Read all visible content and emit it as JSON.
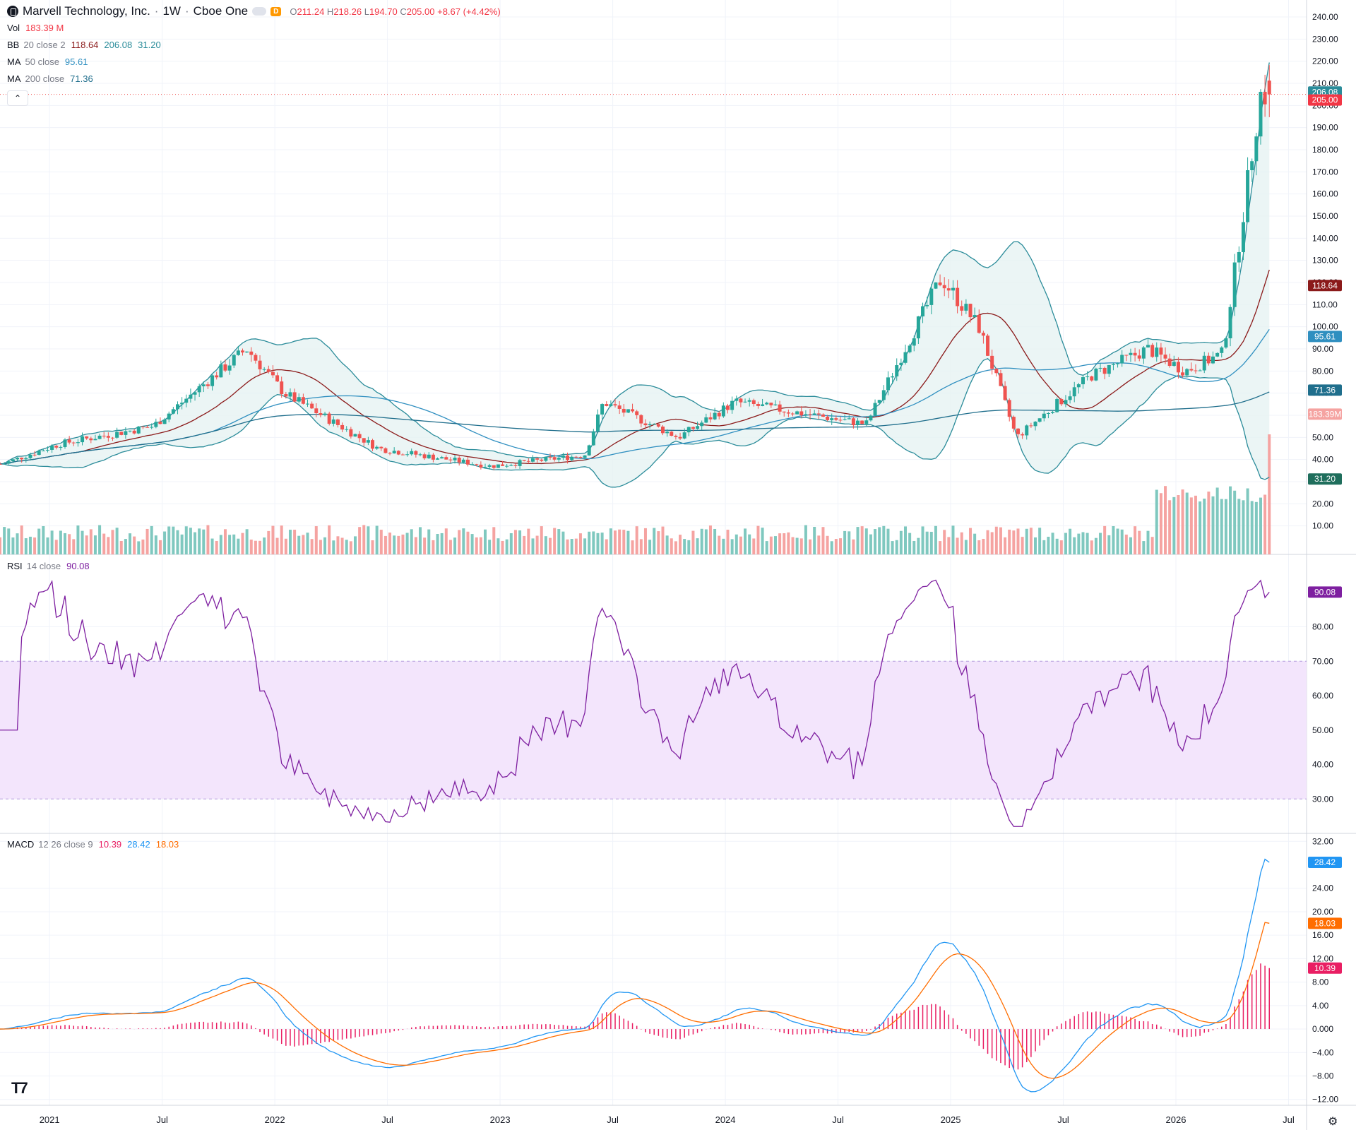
{
  "header": {
    "symbol": "Marvell Technology, Inc.",
    "interval": "1W",
    "exchange": "Cboe One",
    "title_sep": "·",
    "delayed_badge": "D",
    "ohlc": {
      "o_label": "O",
      "o": "211.24",
      "h_label": "H",
      "h": "218.26",
      "l_label": "L",
      "l": "194.70",
      "c_label": "C",
      "c": "205.00",
      "change": "+8.67 (+4.42%)"
    }
  },
  "indicators": {
    "vol": {
      "name": "Vol",
      "value": "183.39 M"
    },
    "bb": {
      "name": "BB",
      "params": "20 close 2",
      "basis": "118.64",
      "upper": "206.08",
      "lower": "31.20"
    },
    "ma50": {
      "name": "MA",
      "params": "50 close",
      "value": "95.61"
    },
    "ma200": {
      "name": "MA",
      "params": "200 close",
      "value": "71.36"
    },
    "rsi": {
      "name": "RSI",
      "params": "14 close",
      "value": "90.08"
    },
    "macd": {
      "name": "MACD",
      "params": "12 26 close 9",
      "hist": "10.39",
      "macd": "28.42",
      "signal": "18.03"
    }
  },
  "colors": {
    "up": "#26a69a",
    "down": "#ef5350",
    "vol_up": "#7fc8bf",
    "vol_down": "#f5a3a1",
    "bb_line": "#2b8c9a",
    "bb_fill": "#e6f2f2",
    "bb_basis": "#8b1a1a",
    "ma50": "#2f8fc0",
    "ma200": "#1f6e8c",
    "rsi": "#7e1fa0",
    "rsi_band": "#f3e5fc",
    "macd": "#2196f3",
    "signal": "#ff6d00",
    "hist": "#e91e63",
    "grid": "#f0f3fa",
    "text": "#131722"
  },
  "axis_labels": {
    "price": [
      "240.00",
      "230.00",
      "220.00",
      "210.00",
      "200.00",
      "190.00",
      "180.00",
      "170.00",
      "160.00",
      "150.00",
      "140.00",
      "130.00",
      "120.00",
      "110.00",
      "100.00",
      "90.00",
      "80.00",
      "70.00",
      "60.00",
      "50.00",
      "40.00",
      "30.00",
      "20.00",
      "10.00"
    ],
    "rsi": [
      "80.00",
      "70.00",
      "60.00",
      "50.00",
      "40.00",
      "30.00"
    ],
    "macd": [
      "32.00",
      "24.00",
      "20.00",
      "16.00",
      "12.00",
      "8.00",
      "4.00",
      "0.000",
      "−4.00",
      "−8.00",
      "−12.00"
    ],
    "time": [
      "2021",
      "Jul",
      "2022",
      "Jul",
      "2023",
      "Jul",
      "2024",
      "Jul",
      "2025",
      "Jul",
      "2026",
      "Jul"
    ]
  },
  "last_value_badges": {
    "bb_upper": "206.08",
    "close": "205.00",
    "bb_basis": "118.64",
    "ma50": "95.61",
    "ma200": "71.36",
    "volume": "183.39M",
    "bb_lower": "31.20",
    "rsi": "90.08",
    "macd": "28.42",
    "signal": "18.03",
    "hist": "10.39"
  },
  "chart_data": {
    "type": "line",
    "title": "Marvell Technology, Inc. · 1W · Cboe One",
    "x_range": [
      "2020-10",
      "2026-07"
    ],
    "price_range": [
      0,
      240
    ],
    "price_anchor_points": [
      {
        "date": "2020-10",
        "close": 38
      },
      {
        "date": "2021-01",
        "close": 47
      },
      {
        "date": "2021-06",
        "close": 55
      },
      {
        "date": "2021-11",
        "close": 90
      },
      {
        "date": "2022-01",
        "close": 70
      },
      {
        "date": "2022-06",
        "close": 45
      },
      {
        "date": "2022-12",
        "close": 37
      },
      {
        "date": "2023-05",
        "close": 42
      },
      {
        "date": "2023-06",
        "close": 66
      },
      {
        "date": "2023-10",
        "close": 50
      },
      {
        "date": "2024-01",
        "close": 66
      },
      {
        "date": "2024-08",
        "close": 56
      },
      {
        "date": "2024-12",
        "close": 122
      },
      {
        "date": "2025-02",
        "close": 100
      },
      {
        "date": "2025-04",
        "close": 50
      },
      {
        "date": "2025-08",
        "close": 78
      },
      {
        "date": "2025-11",
        "close": 90
      },
      {
        "date": "2026-01",
        "close": 80
      },
      {
        "date": "2026-03",
        "close": 88
      },
      {
        "date": "2026-05",
        "close": 205
      }
    ],
    "last_bar": {
      "open": 211.24,
      "high": 218.26,
      "low": 194.7,
      "close": 205.0,
      "change": 8.67,
      "change_pct": 4.42,
      "volume_m": 183.39
    },
    "rsi": {
      "range": [
        20,
        100
      ],
      "overbought": 70,
      "oversold": 30,
      "last": 90.08
    },
    "macd": {
      "range": [
        -13,
        33
      ],
      "macd": 28.42,
      "signal": 18.03,
      "hist": 10.39
    }
  }
}
